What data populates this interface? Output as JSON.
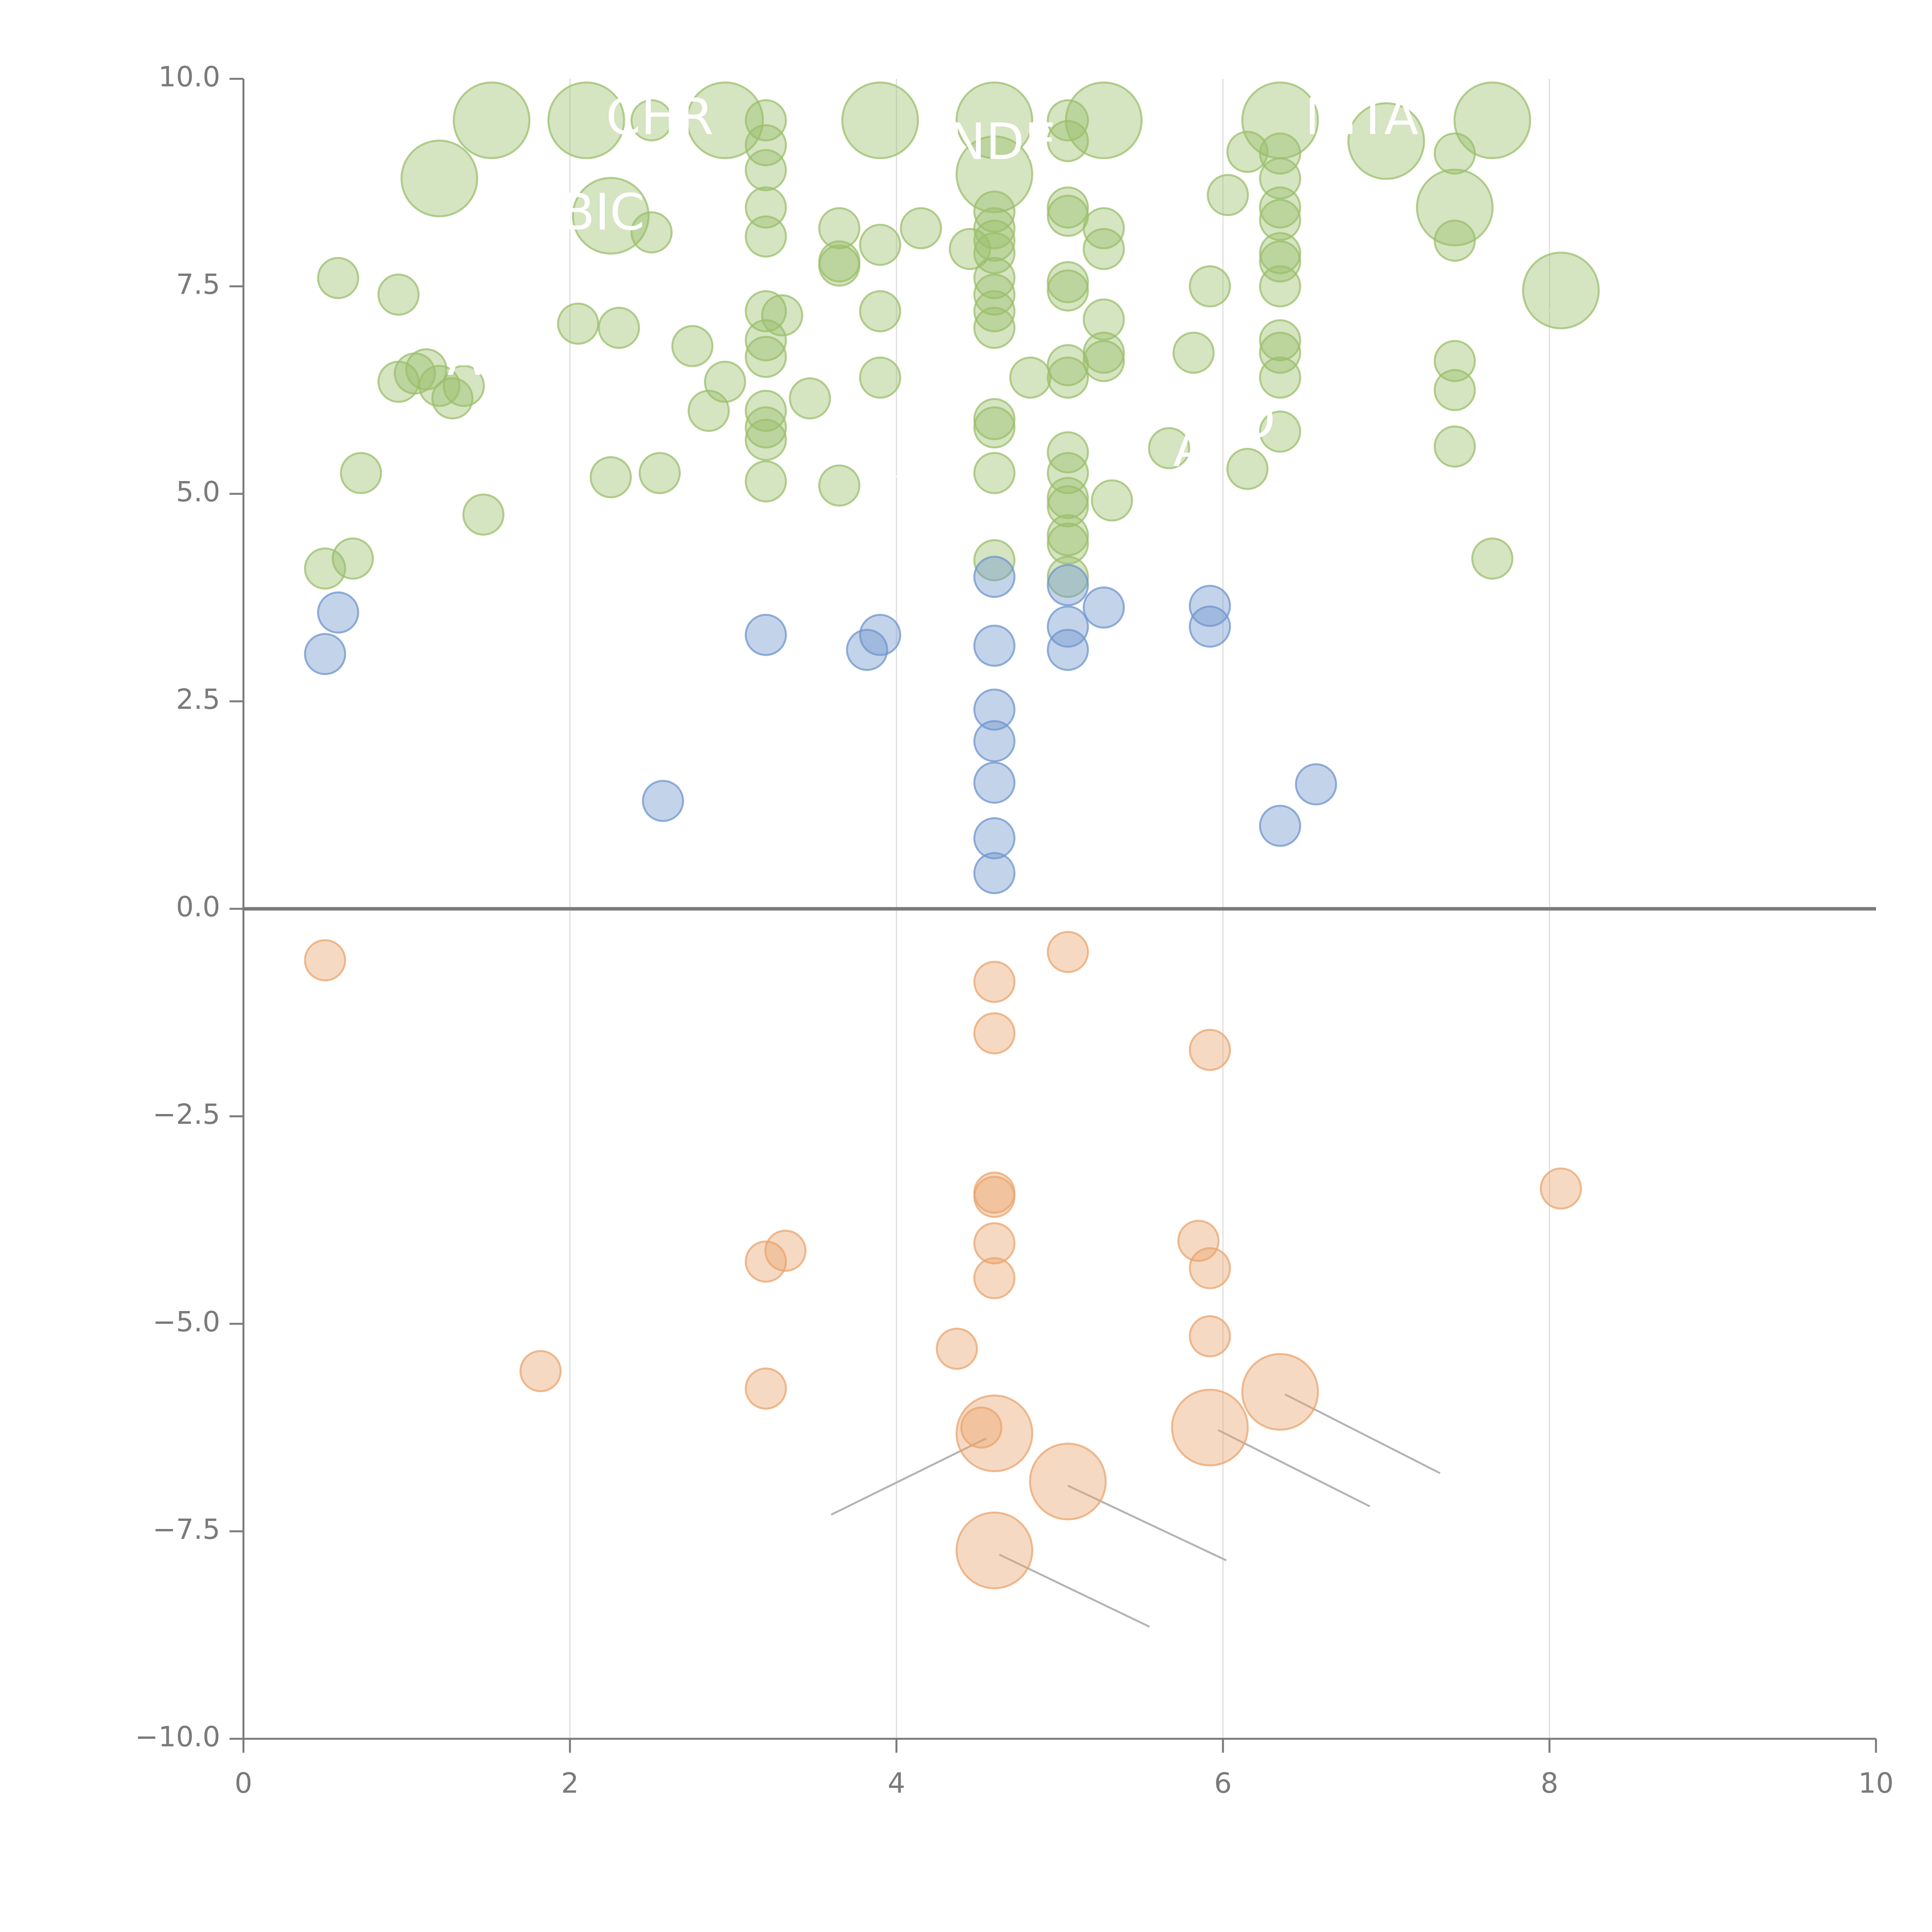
{
  "chart_data": {
    "type": "scatter",
    "title": "",
    "xlabel": "",
    "ylabel": "",
    "xlim": [
      0,
      10
    ],
    "ylim": [
      -10,
      10
    ],
    "x_ticks": [
      0,
      2,
      4,
      6,
      8,
      10
    ],
    "y_ticks": [
      -10.0,
      -7.5,
      -5.0,
      -2.5,
      0.0,
      2.5,
      5.0,
      7.5,
      10.0
    ],
    "x_tick_labels": [
      "0",
      "2",
      "4",
      "6",
      "8",
      "10"
    ],
    "y_tick_labels": [
      "−10.0",
      "−7.5",
      "−5.0",
      "−2.5",
      "0.0",
      "2.5",
      "5.0",
      "7.5",
      "10.0"
    ],
    "vertical_grid_at": [
      2,
      4,
      6,
      8
    ],
    "zero_line": true,
    "colors": {
      "green": "#9bbf6b",
      "blue": "#6f95cc",
      "orange": "#e9a46e",
      "axis": "#7a7a7a",
      "grid": "#dddddd",
      "leader": "#b3b3b3"
    },
    "series": [
      {
        "name": "green",
        "color": "#9bbf6b",
        "points": [
          [
            1.2,
            8.8,
            2
          ],
          [
            1.52,
            9.5,
            2
          ],
          [
            2.1,
            9.5,
            2
          ],
          [
            2.5,
            9.5,
            1
          ],
          [
            2.95,
            9.5,
            2
          ],
          [
            2.25,
            8.35,
            2
          ],
          [
            2.5,
            8.15,
            1
          ],
          [
            0.58,
            7.6,
            1
          ],
          [
            0.95,
            7.4,
            1
          ],
          [
            0.95,
            6.35,
            1
          ],
          [
            1.05,
            6.45,
            1
          ],
          [
            1.12,
            6.5,
            1
          ],
          [
            1.2,
            6.3,
            1
          ],
          [
            1.28,
            6.15,
            1
          ],
          [
            1.35,
            6.3,
            1
          ],
          [
            0.72,
            5.25,
            1
          ],
          [
            0.5,
            4.1,
            1
          ],
          [
            0.67,
            4.22,
            1
          ],
          [
            1.47,
            4.75,
            1
          ],
          [
            2.05,
            7.05,
            1
          ],
          [
            2.3,
            7.0,
            1
          ],
          [
            2.75,
            6.78,
            1
          ],
          [
            2.95,
            6.35,
            1
          ],
          [
            2.85,
            6.0,
            1
          ],
          [
            2.25,
            5.2,
            1
          ],
          [
            2.55,
            5.25,
            1
          ],
          [
            3.2,
            9.5,
            1
          ],
          [
            3.2,
            9.2,
            1
          ],
          [
            3.2,
            8.9,
            1
          ],
          [
            3.2,
            8.45,
            1
          ],
          [
            3.2,
            8.1,
            1
          ],
          [
            3.2,
            7.2,
            1
          ],
          [
            3.3,
            7.15,
            1
          ],
          [
            3.2,
            6.85,
            1
          ],
          [
            3.2,
            6.65,
            1
          ],
          [
            3.2,
            6.0,
            1
          ],
          [
            3.2,
            5.8,
            1
          ],
          [
            3.2,
            5.65,
            1
          ],
          [
            3.2,
            5.15,
            1
          ],
          [
            3.47,
            6.15,
            1
          ],
          [
            3.65,
            8.2,
            1
          ],
          [
            3.65,
            7.8,
            1
          ],
          [
            3.65,
            7.75,
            1
          ],
          [
            3.65,
            5.1,
            1
          ],
          [
            3.9,
            9.5,
            2
          ],
          [
            3.9,
            8.0,
            1
          ],
          [
            3.9,
            7.2,
            1
          ],
          [
            3.9,
            6.4,
            1
          ],
          [
            4.15,
            8.2,
            1
          ],
          [
            4.45,
            7.95,
            1
          ],
          [
            4.6,
            9.5,
            2
          ],
          [
            4.6,
            8.85,
            2
          ],
          [
            4.6,
            8.4,
            1
          ],
          [
            4.6,
            8.2,
            1
          ],
          [
            4.6,
            8.05,
            1
          ],
          [
            4.6,
            7.9,
            1
          ],
          [
            4.6,
            7.6,
            1
          ],
          [
            4.6,
            7.4,
            1
          ],
          [
            4.6,
            7.2,
            1
          ],
          [
            4.6,
            7.0,
            1
          ],
          [
            4.6,
            5.9,
            1
          ],
          [
            4.6,
            5.8,
            1
          ],
          [
            4.6,
            5.25,
            1
          ],
          [
            4.6,
            4.2,
            1
          ],
          [
            4.82,
            6.4,
            1
          ],
          [
            5.05,
            9.5,
            1
          ],
          [
            5.05,
            9.25,
            1
          ],
          [
            5.05,
            8.45,
            1
          ],
          [
            5.05,
            8.35,
            1
          ],
          [
            5.05,
            7.55,
            1
          ],
          [
            5.05,
            7.45,
            1
          ],
          [
            5.05,
            6.55,
            1
          ],
          [
            5.05,
            6.4,
            1
          ],
          [
            5.05,
            5.5,
            1
          ],
          [
            5.05,
            5.25,
            1
          ],
          [
            5.05,
            4.95,
            1
          ],
          [
            5.05,
            4.85,
            1
          ],
          [
            5.05,
            4.5,
            1
          ],
          [
            5.05,
            4.4,
            1
          ],
          [
            5.05,
            4.0,
            1
          ],
          [
            5.27,
            9.5,
            2
          ],
          [
            5.27,
            8.2,
            1
          ],
          [
            5.27,
            7.95,
            1
          ],
          [
            5.27,
            7.1,
            1
          ],
          [
            5.27,
            6.7,
            1
          ],
          [
            5.27,
            6.6,
            1
          ],
          [
            5.32,
            4.92,
            1
          ],
          [
            5.67,
            5.55,
            1
          ],
          [
            5.82,
            6.7,
            1
          ],
          [
            5.92,
            7.5,
            1
          ],
          [
            6.03,
            8.6,
            1
          ],
          [
            6.15,
            9.12,
            1
          ],
          [
            6.15,
            5.3,
            1
          ],
          [
            6.35,
            9.5,
            2
          ],
          [
            6.35,
            9.1,
            1
          ],
          [
            6.35,
            8.8,
            1
          ],
          [
            6.35,
            8.45,
            1
          ],
          [
            6.35,
            8.3,
            1
          ],
          [
            6.35,
            7.9,
            1
          ],
          [
            6.35,
            7.8,
            1
          ],
          [
            6.35,
            7.5,
            1
          ],
          [
            6.35,
            6.85,
            1
          ],
          [
            6.35,
            6.7,
            1
          ],
          [
            6.35,
            6.4,
            1
          ],
          [
            6.35,
            5.75,
            1
          ],
          [
            7.0,
            9.25,
            2
          ],
          [
            7.42,
            8.45,
            2
          ],
          [
            7.42,
            9.1,
            1
          ],
          [
            7.42,
            8.05,
            1
          ],
          [
            7.42,
            6.6,
            1
          ],
          [
            7.42,
            6.25,
            1
          ],
          [
            7.42,
            5.57,
            1
          ],
          [
            7.65,
            9.5,
            2
          ],
          [
            7.65,
            4.22,
            1
          ],
          [
            8.07,
            7.45,
            2
          ]
        ]
      },
      {
        "name": "blue",
        "color": "#6f95cc",
        "points": [
          [
            0.58,
            3.57,
            1
          ],
          [
            0.5,
            3.07,
            1
          ],
          [
            2.57,
            1.3,
            1
          ],
          [
            3.2,
            3.3,
            1
          ],
          [
            3.82,
            3.12,
            1
          ],
          [
            3.9,
            3.3,
            1
          ],
          [
            4.6,
            4.0,
            1
          ],
          [
            4.6,
            3.17,
            1
          ],
          [
            4.6,
            2.4,
            1
          ],
          [
            4.6,
            2.02,
            1
          ],
          [
            4.6,
            1.52,
            1
          ],
          [
            4.6,
            0.85,
            1
          ],
          [
            4.6,
            0.43,
            1
          ],
          [
            5.05,
            3.9,
            1
          ],
          [
            5.05,
            3.4,
            1
          ],
          [
            5.05,
            3.12,
            1
          ],
          [
            5.27,
            3.63,
            1
          ],
          [
            5.92,
            3.65,
            1
          ],
          [
            5.92,
            3.4,
            1
          ],
          [
            6.35,
            1.0,
            1
          ],
          [
            6.57,
            1.5,
            1
          ]
        ]
      },
      {
        "name": "orange",
        "color": "#e9a46e",
        "points": [
          [
            0.5,
            -0.62,
            1
          ],
          [
            1.82,
            -5.57,
            1
          ],
          [
            3.2,
            -4.25,
            1
          ],
          [
            3.32,
            -4.12,
            1
          ],
          [
            3.2,
            -5.78,
            1
          ],
          [
            4.37,
            -5.3,
            1
          ],
          [
            4.52,
            -6.25,
            1
          ],
          [
            4.6,
            -0.88,
            1
          ],
          [
            4.6,
            -1.5,
            1
          ],
          [
            4.6,
            -3.42,
            1
          ],
          [
            4.6,
            -3.47,
            1
          ],
          [
            4.6,
            -4.03,
            1
          ],
          [
            4.6,
            -4.45,
            1
          ],
          [
            4.6,
            -6.32,
            2
          ],
          [
            4.6,
            -7.73,
            2
          ],
          [
            5.05,
            -0.52,
            1
          ],
          [
            5.05,
            -6.9,
            2
          ],
          [
            5.85,
            -4.0,
            1
          ],
          [
            5.92,
            -1.7,
            1
          ],
          [
            5.92,
            -4.33,
            1
          ],
          [
            5.92,
            -5.15,
            1
          ],
          [
            5.92,
            -6.25,
            2
          ],
          [
            6.35,
            -5.82,
            2
          ],
          [
            8.07,
            -3.37,
            1
          ]
        ]
      }
    ],
    "annotations": [
      {
        "text": "CHR",
        "x": 2.55,
        "y": 9.5
      },
      {
        "text": "BIC",
        "x": 2.2,
        "y": 8.35
      },
      {
        "text": "ENDE",
        "x": 4.55,
        "y": 9.2
      },
      {
        "text": "NITA",
        "x": 6.85,
        "y": 9.5
      },
      {
        "text": "AE",
        "x": 1.45,
        "y": 6.6
      },
      {
        "text": "A",
        "x": 5.8,
        "y": 5.5
      },
      {
        "text": "O",
        "x": 6.2,
        "y": 5.85
      }
    ],
    "leader_lines": [
      [
        4.55,
        -6.38,
        3.6,
        -7.3
      ],
      [
        5.05,
        -6.95,
        6.02,
        -7.85
      ],
      [
        4.63,
        -7.78,
        5.55,
        -8.65
      ],
      [
        5.97,
        -6.28,
        6.9,
        -7.2
      ],
      [
        6.38,
        -5.85,
        7.33,
        -6.8
      ],
      [
        1.08,
        8.97,
        1.2,
        8.85
      ],
      [
        1.54,
        9.42,
        1.7,
        9.3
      ],
      [
        2.97,
        9.42,
        3.05,
        9.2
      ],
      [
        3.93,
        9.45,
        3.8,
        9.3
      ],
      [
        5.3,
        9.45,
        5.38,
        9.2
      ],
      [
        6.38,
        9.45,
        6.3,
        9.05
      ],
      [
        7.65,
        9.4,
        7.8,
        9.2
      ],
      [
        7.42,
        8.37,
        7.47,
        8.1
      ],
      [
        8.07,
        7.38,
        8.0,
        7.2
      ],
      [
        3.2,
        8.3,
        3.28,
        8.0
      ],
      [
        2.57,
        5.3,
        2.62,
        5.05
      ],
      [
        5.05,
        6.6,
        5.12,
        6.25
      ],
      [
        7.42,
        5.5,
        7.32,
        5.3
      ],
      [
        4.0,
        5.2,
        4.1,
        5.4
      ]
    ]
  }
}
